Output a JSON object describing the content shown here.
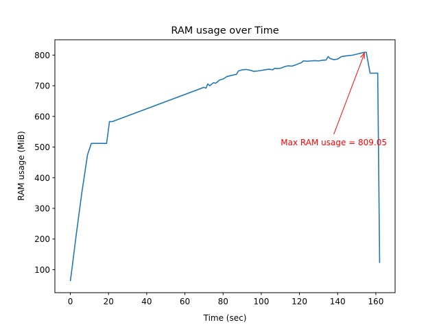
{
  "chart_data": {
    "type": "line",
    "title": "RAM usage over Time",
    "xlabel": "Time (sec)",
    "ylabel": "RAM usage (MiB)",
    "xlim": [
      -8.1,
      170.1
    ],
    "ylim": [
      25,
      850
    ],
    "xticks": [
      0,
      20,
      40,
      60,
      80,
      100,
      120,
      140,
      160
    ],
    "yticks": [
      100,
      200,
      300,
      400,
      500,
      600,
      700,
      800
    ],
    "grid": false,
    "series": [
      {
        "color": "#1f77b4",
        "x": [
          0,
          1,
          3,
          6,
          9,
          11,
          14,
          17,
          19,
          20.5,
          22,
          70,
          71,
          72,
          73,
          74,
          75,
          76,
          77,
          78,
          80,
          82,
          84,
          86,
          87,
          88,
          90,
          92,
          94,
          96,
          98,
          100,
          102,
          104,
          106,
          107,
          108,
          110,
          111,
          112,
          114,
          116,
          118,
          120,
          121,
          122,
          124,
          126,
          128,
          130,
          132,
          134,
          135,
          136,
          138,
          140,
          142,
          144,
          148,
          150,
          152,
          154,
          155,
          157,
          160,
          161,
          162
        ],
        "y": [
          63,
          110,
          210,
          350,
          475,
          512,
          512,
          512,
          512,
          583,
          583,
          695,
          692,
          706,
          700,
          705,
          710,
          708,
          712,
          718,
          722,
          730,
          733,
          736,
          737,
          748,
          752,
          753,
          751,
          747,
          748,
          750,
          752,
          754,
          752,
          757,
          756,
          757,
          759,
          762,
          765,
          764,
          768,
          773,
          775,
          781,
          780,
          781,
          782,
          781,
          783,
          784,
          795,
          789,
          785,
          787,
          795,
          797,
          800,
          803,
          806,
          809.05,
          809,
          741,
          741,
          741,
          122
        ]
      }
    ],
    "annotation": {
      "text": "Max RAM usage = 809.05",
      "color": "#ff0000",
      "point": [
        154,
        809.05
      ],
      "text_anchor": [
        138,
        515
      ]
    }
  }
}
